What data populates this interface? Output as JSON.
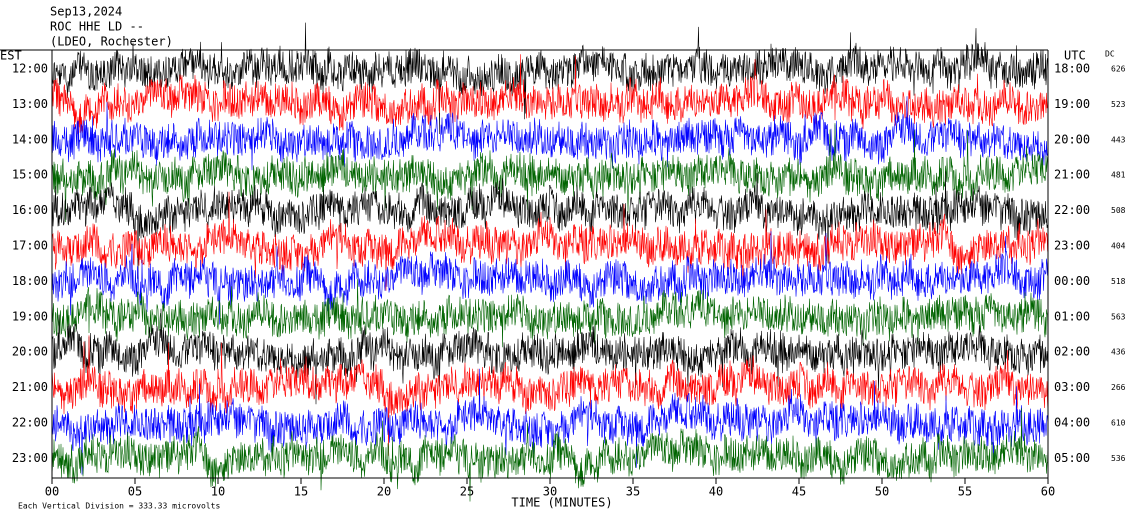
{
  "header": {
    "date": "Sep13,2024",
    "station": "ROC HHE LD --",
    "network": "(LDEO, Rochester)"
  },
  "left_axis_label": "EST",
  "right_axis_label": "UTC",
  "dc_label": "DC",
  "rows": [
    {
      "est": "12:00",
      "utc": "18:00",
      "dc": "626",
      "color": "#000000"
    },
    {
      "est": "13:00",
      "utc": "19:00",
      "dc": "523",
      "color": "#ff0000"
    },
    {
      "est": "14:00",
      "utc": "20:00",
      "dc": "443",
      "color": "#0000ff"
    },
    {
      "est": "15:00",
      "utc": "21:00",
      "dc": "481",
      "color": "#006400"
    },
    {
      "est": "16:00",
      "utc": "22:00",
      "dc": "508",
      "color": "#000000"
    },
    {
      "est": "17:00",
      "utc": "23:00",
      "dc": "404",
      "color": "#ff0000"
    },
    {
      "est": "18:00",
      "utc": "00:00",
      "dc": "518",
      "color": "#0000ff"
    },
    {
      "est": "19:00",
      "utc": "01:00",
      "dc": "563",
      "color": "#006400"
    },
    {
      "est": "20:00",
      "utc": "02:00",
      "dc": "436",
      "color": "#000000"
    },
    {
      "est": "21:00",
      "utc": "03:00",
      "dc": "266",
      "color": "#ff0000"
    },
    {
      "est": "22:00",
      "utc": "04:00",
      "dc": "610",
      "color": "#0000ff"
    },
    {
      "est": "23:00",
      "utc": "05:00",
      "dc": "536",
      "color": "#006400"
    }
  ],
  "x_axis": {
    "title": "TIME (MINUTES)",
    "lim": [
      0,
      60
    ],
    "ticks": [
      {
        "value": 0,
        "label": "00"
      },
      {
        "value": 5,
        "label": "05"
      },
      10,
      15,
      20,
      25,
      30,
      35,
      40,
      45,
      50,
      55,
      60
    ]
  },
  "footer": "Each Vertical Division =  333.33 microvolts"
}
